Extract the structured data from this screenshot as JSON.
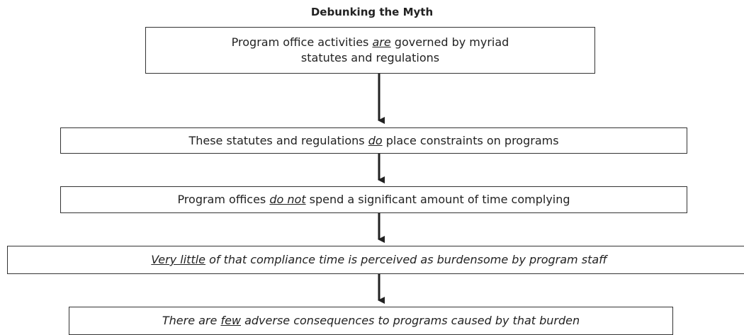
{
  "title": "Debunking the Myth",
  "nodes": [
    {
      "lines": [
        [
          {
            "text": "Program office activities ",
            "style": "plain"
          },
          {
            "text": "are",
            "style": "italic underline"
          },
          {
            "text": " governed by myriad",
            "style": "plain"
          }
        ],
        [
          {
            "text": "statutes and regulations",
            "style": "plain"
          }
        ]
      ]
    },
    {
      "lines": [
        [
          {
            "text": "These statutes and regulations ",
            "style": "plain"
          },
          {
            "text": "do",
            "style": "italic underline"
          },
          {
            "text": " place constraints on programs",
            "style": "plain"
          }
        ]
      ]
    },
    {
      "lines": [
        [
          {
            "text": "Program offices ",
            "style": "plain"
          },
          {
            "text": "do not",
            "style": "italic underline"
          },
          {
            "text": " spend a significant amount of time complying",
            "style": "plain"
          }
        ]
      ]
    },
    {
      "lines": [
        [
          {
            "text": "Very little",
            "style": "italic underline"
          },
          {
            "text": " of that compliance time is perceived as burdensome by program staff",
            "style": "italic"
          }
        ]
      ]
    },
    {
      "lines": [
        [
          {
            "text": "There are ",
            "style": "italic"
          },
          {
            "text": "few",
            "style": "italic underline"
          },
          {
            "text": " adverse consequences to programs caused by that burden",
            "style": "italic"
          }
        ]
      ]
    }
  ]
}
